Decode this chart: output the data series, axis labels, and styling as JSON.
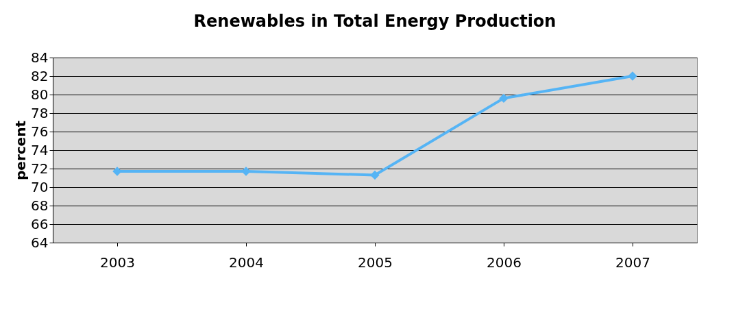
{
  "chart_data": {
    "type": "line",
    "title": "Renewables in Total Energy Production",
    "ylabel": "percent",
    "categories": [
      "2003",
      "2004",
      "2005",
      "2006",
      "2007"
    ],
    "series": [
      {
        "color": "#55b4f5",
        "values": [
          71.7,
          71.7,
          71.3,
          79.6,
          82.0
        ]
      }
    ],
    "ylim": [
      64,
      84
    ],
    "yticks": [
      64,
      66,
      68,
      70,
      72,
      74,
      76,
      78,
      80,
      82,
      84
    ],
    "grid": "y",
    "marker": "diamond",
    "line_style": "solid"
  }
}
